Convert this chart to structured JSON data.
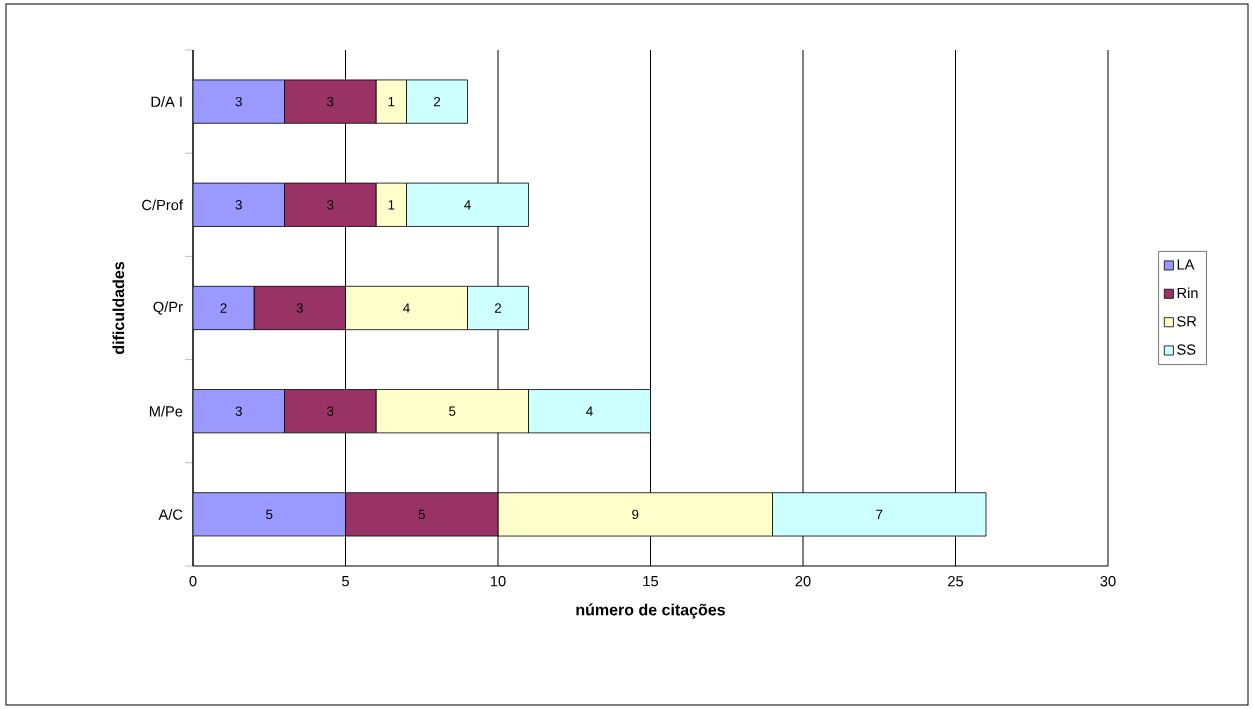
{
  "chart_data": {
    "type": "bar",
    "orientation": "horizontal",
    "stacked": true,
    "categories": [
      "D/A I",
      "C/Prof",
      "Q/Pr",
      "M/Pe",
      "A/C"
    ],
    "series": [
      {
        "name": "LA",
        "color": "#9999ff",
        "values": [
          3,
          3,
          2,
          3,
          5
        ]
      },
      {
        "name": "Rin",
        "color": "#993366",
        "values": [
          3,
          3,
          3,
          3,
          5
        ]
      },
      {
        "name": "SR",
        "color": "#ffffcc",
        "values": [
          1,
          1,
          4,
          5,
          9
        ]
      },
      {
        "name": "SS",
        "color": "#ccffff",
        "values": [
          2,
          4,
          2,
          4,
          7
        ]
      }
    ],
    "xlim": [
      0,
      30
    ],
    "xticks": [
      0,
      5,
      10,
      15,
      20,
      25,
      30
    ],
    "grid": "x",
    "legend": "right",
    "data_labels": true,
    "xlabel": "número de citações",
    "ylabel": "dificuldades"
  }
}
